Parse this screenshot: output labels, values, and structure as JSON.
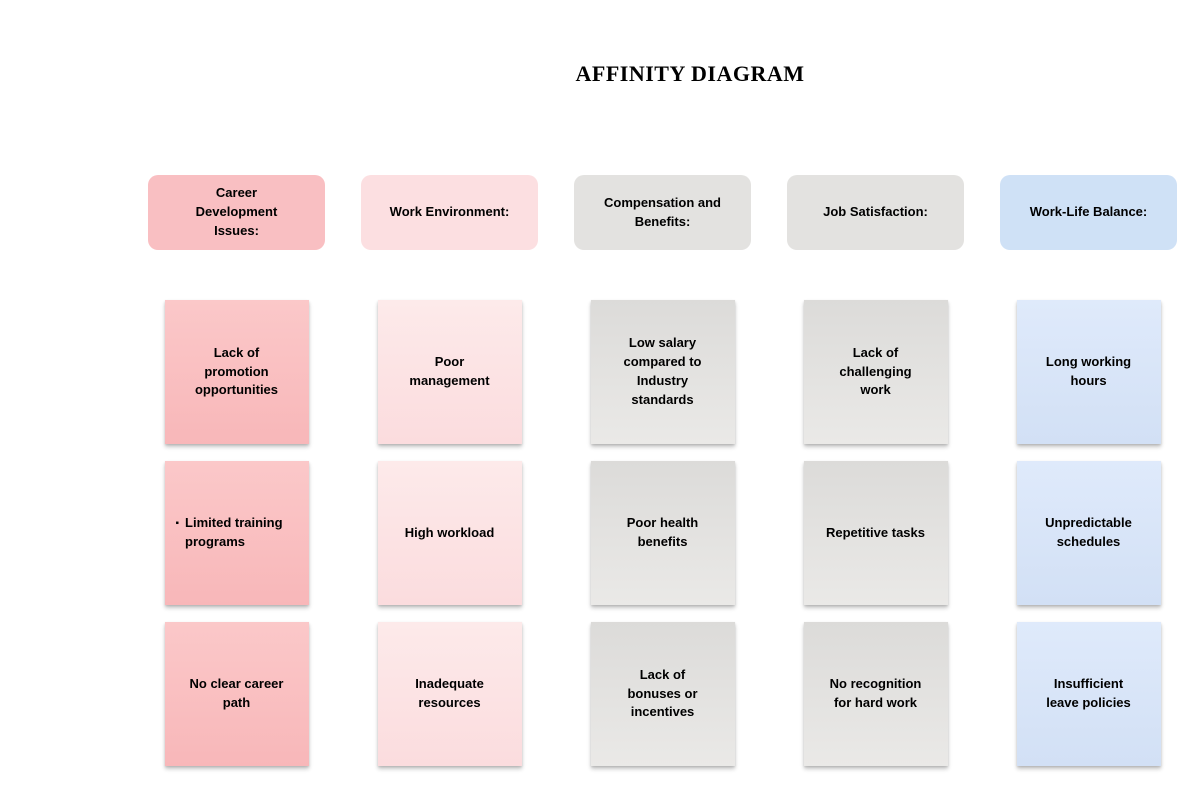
{
  "title": "AFFINITY DIAGRAM",
  "columns": [
    {
      "header": {
        "label": "Career Development Issues:",
        "bg": "#f9bfc2"
      },
      "note_colors": {
        "top": "#fbc8c9",
        "bottom": "#f8b7b9"
      },
      "notes": [
        {
          "text": "Lack of promotion opportunities"
        },
        {
          "bullet": "▪",
          "text": "Limited training programs"
        },
        {
          "text": "No clear career path"
        }
      ]
    },
    {
      "header": {
        "label": "Work Environment:",
        "bg": "#fcdfe1"
      },
      "note_colors": {
        "top": "#fdeaea",
        "bottom": "#fbdcde"
      },
      "notes": [
        {
          "text": "Poor management"
        },
        {
          "text": "High workload"
        },
        {
          "text": "Inadequate resources"
        }
      ]
    },
    {
      "header": {
        "label": "Compensation and Benefits:",
        "bg": "#e3e2e0"
      },
      "note_colors": {
        "top": "#dcdbd9",
        "bottom": "#eae9e7"
      },
      "notes": [
        {
          "text": "Low salary compared to Industry standards"
        },
        {
          "text": "Poor health benefits"
        },
        {
          "text": "Lack of bonuses or incentives"
        }
      ]
    },
    {
      "header": {
        "label": "Job Satisfaction:",
        "bg": "#e3e2e0"
      },
      "note_colors": {
        "top": "#dcdbd9",
        "bottom": "#eae9e7"
      },
      "notes": [
        {
          "text": "Lack of challenging work"
        },
        {
          "text": "Repetitive tasks"
        },
        {
          "text": "No recognition for hard work"
        }
      ]
    },
    {
      "header": {
        "label": "Work-Life Balance:",
        "bg": "#cfe1f6"
      },
      "note_colors": {
        "top": "#dfeafb",
        "bottom": "#d2e0f5"
      },
      "notes": [
        {
          "text": "Long working hours"
        },
        {
          "text": "Unpredictable schedules"
        },
        {
          "text": "Insufficient leave policies"
        }
      ]
    }
  ]
}
